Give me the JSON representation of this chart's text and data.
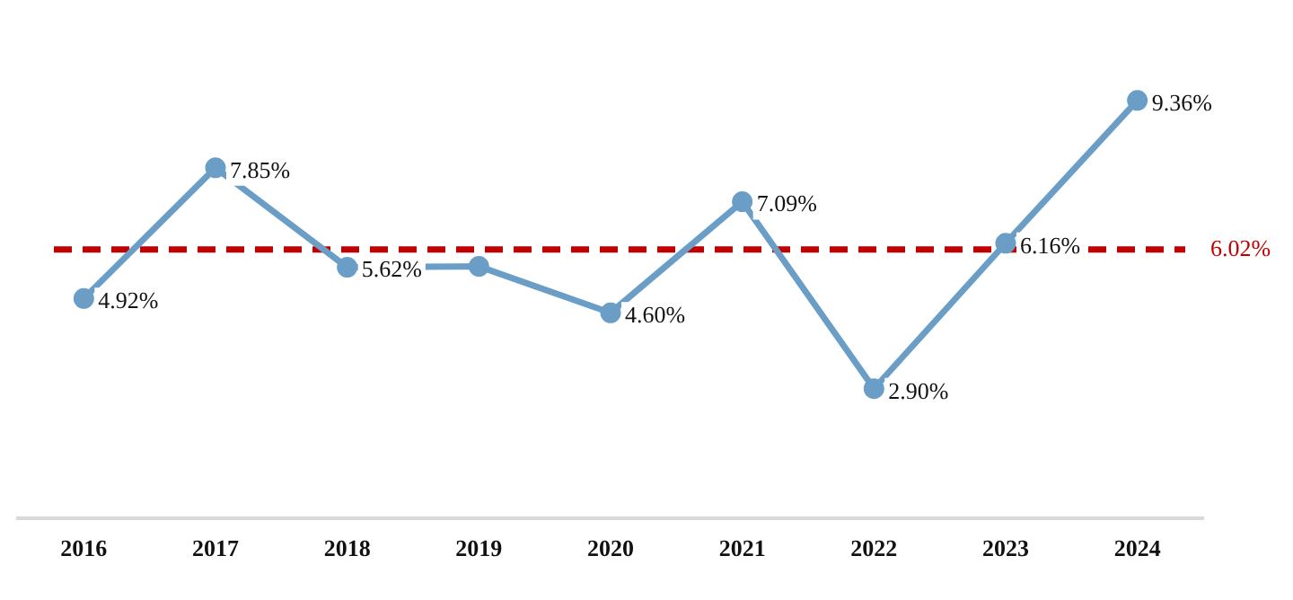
{
  "chart_data": {
    "type": "line",
    "categories": [
      "2016",
      "2017",
      "2018",
      "2019",
      "2020",
      "2021",
      "2022",
      "2023",
      "2024"
    ],
    "series": [
      {
        "color": "#6a9ec6",
        "values": [
          4.92,
          7.85,
          5.62,
          5.64,
          4.6,
          7.09,
          2.9,
          6.16,
          9.36
        ],
        "value_labels": [
          "4.92%",
          "7.85%",
          "5.62%",
          null,
          "4.60%",
          "7.09%",
          "2.90%",
          "6.16%",
          "9.36%"
        ]
      }
    ],
    "ref_lines": [
      {
        "axis": "y",
        "value": 6.02,
        "label": "6.02%",
        "color": "#c00000",
        "line_style": "dashed"
      }
    ],
    "marker": "circle",
    "line_style": "solid",
    "grid": false,
    "legend": false,
    "tick_labels": "x"
  }
}
